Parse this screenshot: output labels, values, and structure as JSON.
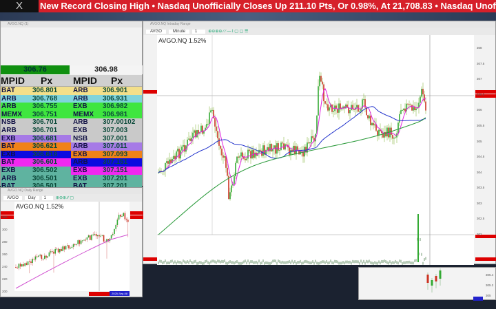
{
  "ticker": {
    "logo": "X",
    "text": "New Record Closing High  •  Nasdaq Unofficially Closes Up 211.10 Pts, Or 0.98%, At 21,708.83  •  Nasdaq Unofficially"
  },
  "level2": {
    "title": "AVGO.NQ (1)",
    "bid": "306.76",
    "ask": "306.98",
    "header": {
      "mpid": "MPID",
      "px": "Px"
    },
    "bids": [
      [
        "BAT",
        "306.801"
      ],
      [
        "ARB",
        "306.768"
      ],
      [
        "ARB",
        "306.755"
      ],
      [
        "MEMX",
        "306.751"
      ],
      [
        "NSB",
        "306.701"
      ],
      [
        "ARB",
        "306.701"
      ],
      [
        "EXB",
        "306.681"
      ],
      [
        "BAT",
        "306.621"
      ],
      [
        "EXB",
        "306.616"
      ],
      [
        "BAT",
        "306.601"
      ],
      [
        "EXB",
        "306.502"
      ],
      [
        "ARB",
        "306.501"
      ],
      [
        "BAT",
        "306.501"
      ],
      [
        "BAT",
        "306.331"
      ],
      [
        "NSB",
        "306.101"
      ]
    ],
    "asks": [
      [
        "ARB",
        "306.901"
      ],
      [
        "ARB",
        "306.931"
      ],
      [
        "EXB",
        "306.982"
      ],
      [
        "MEMX",
        "306.981"
      ],
      [
        "ARB",
        "307.00102"
      ],
      [
        "EXB",
        "307.003"
      ],
      [
        "NSB",
        "307.001"
      ],
      [
        "ARB",
        "307.011"
      ],
      [
        "EXB",
        "307.093"
      ],
      [
        "ARB",
        "307.151"
      ],
      [
        "EXB",
        "307.151"
      ],
      [
        "EXB",
        "307.201"
      ],
      [
        "BAT",
        "307.201"
      ],
      [
        "NSB",
        "307.801"
      ],
      [
        "BAT",
        "307.801"
      ]
    ],
    "bid_colors": [
      "#f3df8a",
      "#80d4dc",
      "#3fe63f",
      "#3fe63f",
      "#c9c9c9",
      "#c9c9c9",
      "#a67ae6",
      "#f08218",
      "#0a0ae0",
      "#f028f0",
      "#5fb3a0",
      "#5fb3a0",
      "#5fb3a0",
      "#c9a226",
      "#a8a8a8"
    ],
    "ask_colors": [
      "#f3df8a",
      "#80d4dc",
      "#3fe63f",
      "#3fe63f",
      "#c9c9c9",
      "#c9c9c9",
      "#c9c9c9",
      "#a67ae6",
      "#f08218",
      "#0a0ae0",
      "#f028f0",
      "#5fb3a0",
      "#5fb3a0",
      "#c9a226",
      "#c9a226"
    ]
  },
  "main_chart": {
    "title": "AVGO.NQ Intraday Range",
    "toolbar": {
      "symbol": "AVGO",
      "interval": "Minute",
      "count": "1"
    },
    "label": "AVGO.NQ  1.52%",
    "y_ticks": [
      "308",
      "307.5",
      "307",
      "306.5",
      "306",
      "305.5",
      "305",
      "304.5",
      "304",
      "303.5",
      "303",
      "302.5",
      "302"
    ]
  },
  "daily_chart": {
    "title": "AVGO.NQ Daily Range",
    "toolbar": {
      "symbol": "AVGO",
      "interval": "Day",
      "count": "1"
    },
    "label": "AVGO.NQ  1.52%",
    "y_ticks": [
      "320",
      "300",
      "280",
      "260",
      "240",
      "220",
      "200"
    ],
    "date_tag": "2025-Sep-08"
  },
  "mini_chart": {
    "y_ticks": [
      "305.4",
      "305.2",
      "305"
    ]
  }
}
